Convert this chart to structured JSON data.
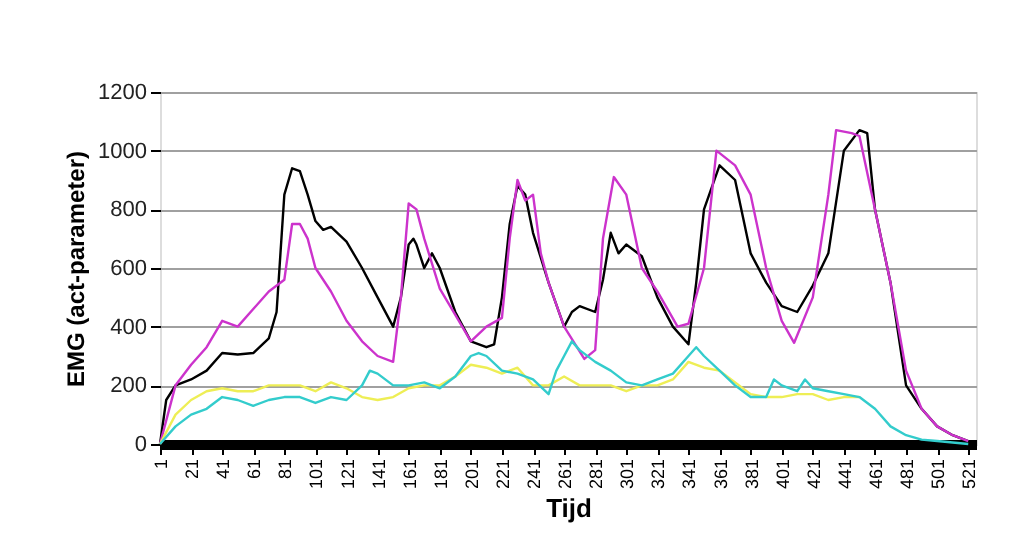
{
  "chart_data": {
    "type": "line",
    "xlabel": "Tijd",
    "ylabel": "EMG (act-parameter)",
    "xlim": [
      1,
      526
    ],
    "xticks": [
      1,
      21,
      41,
      61,
      81,
      101,
      121,
      141,
      161,
      181,
      201,
      221,
      241,
      261,
      281,
      301,
      321,
      341,
      361,
      381,
      401,
      421,
      441,
      461,
      481,
      501,
      521
    ],
    "ylim": [
      0,
      1200
    ],
    "yticks": [
      0,
      200,
      400,
      600,
      800,
      1000,
      1200
    ],
    "grid": "y",
    "legend": false,
    "marker": "none",
    "line_style": "solid",
    "series": [
      {
        "color": "#000000",
        "x": [
          1,
          5,
          11,
          21,
          31,
          41,
          51,
          61,
          71,
          76,
          81,
          86,
          91,
          96,
          101,
          106,
          111,
          121,
          131,
          141,
          151,
          156,
          161,
          164,
          166,
          171,
          176,
          181,
          191,
          201,
          211,
          216,
          221,
          226,
          231,
          236,
          241,
          251,
          261,
          266,
          271,
          281,
          286,
          291,
          296,
          301,
          311,
          321,
          331,
          341,
          346,
          351,
          361,
          371,
          381,
          391,
          401,
          411,
          421,
          431,
          441,
          451,
          456,
          461,
          471,
          481,
          491,
          501,
          511,
          521
        ],
        "values": [
          0,
          150,
          200,
          220,
          250,
          310,
          305,
          310,
          360,
          450,
          850,
          940,
          930,
          850,
          760,
          730,
          740,
          690,
          600,
          500,
          400,
          500,
          680,
          700,
          680,
          600,
          650,
          600,
          450,
          350,
          330,
          340,
          500,
          750,
          880,
          850,
          720,
          550,
          400,
          450,
          470,
          450,
          560,
          720,
          650,
          680,
          640,
          500,
          400,
          340,
          550,
          800,
          950,
          900,
          650,
          550,
          470,
          450,
          540,
          650,
          1000,
          1070,
          1060,
          800,
          550,
          200,
          120,
          60,
          30,
          10
        ]
      },
      {
        "color": "#cc33cc",
        "x": [
          1,
          11,
          21,
          31,
          41,
          51,
          61,
          71,
          81,
          86,
          91,
          96,
          101,
          111,
          121,
          131,
          141,
          151,
          156,
          161,
          166,
          171,
          181,
          191,
          201,
          211,
          221,
          226,
          231,
          236,
          241,
          246,
          251,
          261,
          274,
          281,
          286,
          293,
          301,
          311,
          321,
          334,
          341,
          351,
          359,
          371,
          381,
          391,
          401,
          409,
          421,
          431,
          436,
          446,
          451,
          461,
          471,
          481,
          491,
          501,
          511,
          521
        ],
        "values": [
          0,
          200,
          270,
          330,
          420,
          400,
          460,
          520,
          560,
          750,
          750,
          700,
          600,
          520,
          420,
          350,
          300,
          280,
          500,
          820,
          800,
          700,
          530,
          440,
          350,
          400,
          430,
          700,
          900,
          830,
          850,
          650,
          550,
          400,
          290,
          320,
          700,
          910,
          850,
          600,
          520,
          400,
          410,
          600,
          1000,
          950,
          850,
          600,
          420,
          345,
          500,
          850,
          1070,
          1060,
          1050,
          800,
          550,
          250,
          120,
          60,
          30,
          10
        ]
      },
      {
        "color": "#eeee55",
        "x": [
          1,
          11,
          21,
          31,
          41,
          51,
          61,
          71,
          81,
          91,
          101,
          111,
          121,
          131,
          141,
          151,
          161,
          171,
          181,
          191,
          201,
          211,
          221,
          231,
          241,
          251,
          261,
          271,
          281,
          291,
          301,
          311,
          321,
          331,
          341,
          351,
          361,
          371,
          381,
          391,
          401,
          411,
          421,
          431,
          441,
          451
        ],
        "values": [
          0,
          100,
          150,
          180,
          190,
          180,
          180,
          200,
          200,
          200,
          180,
          210,
          190,
          160,
          150,
          160,
          190,
          200,
          200,
          230,
          270,
          260,
          240,
          260,
          200,
          200,
          230,
          200,
          200,
          200,
          180,
          200,
          200,
          220,
          280,
          260,
          250,
          210,
          170,
          160,
          160,
          170,
          170,
          150,
          160,
          160
        ]
      },
      {
        "color": "#33cccc",
        "x": [
          1,
          11,
          21,
          31,
          41,
          51,
          61,
          71,
          81,
          91,
          101,
          111,
          121,
          131,
          136,
          141,
          151,
          161,
          171,
          181,
          191,
          201,
          206,
          211,
          221,
          231,
          241,
          251,
          256,
          261,
          266,
          271,
          281,
          291,
          301,
          311,
          321,
          331,
          341,
          346,
          351,
          361,
          371,
          381,
          391,
          396,
          401,
          411,
          416,
          421,
          431,
          441,
          451,
          461,
          471,
          481,
          491,
          501,
          511,
          521
        ],
        "values": [
          0,
          60,
          100,
          120,
          160,
          150,
          130,
          150,
          160,
          160,
          140,
          160,
          150,
          200,
          250,
          240,
          200,
          200,
          210,
          190,
          230,
          300,
          310,
          300,
          250,
          240,
          220,
          170,
          250,
          300,
          350,
          320,
          280,
          250,
          210,
          200,
          220,
          240,
          300,
          330,
          300,
          250,
          200,
          160,
          160,
          220,
          200,
          180,
          220,
          190,
          180,
          170,
          160,
          120,
          60,
          30,
          15,
          10,
          5,
          0
        ]
      }
    ]
  }
}
